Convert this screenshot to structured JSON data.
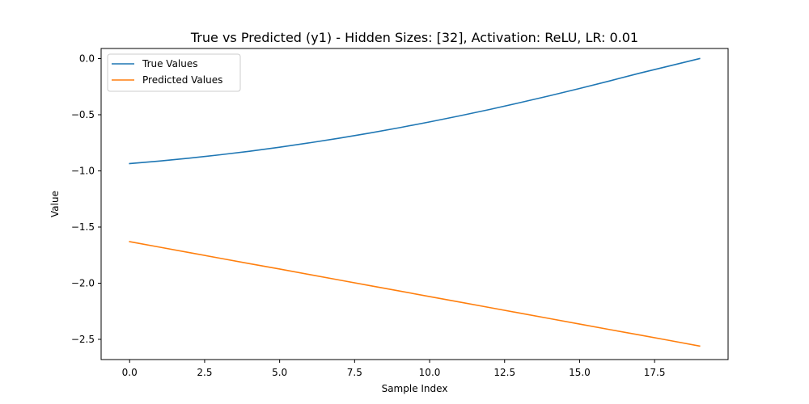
{
  "chart_data": {
    "type": "line",
    "title": "True vs Predicted (y1) - Hidden Sizes: [32], Activation: ReLU, LR: 0.01",
    "xlabel": "Sample Index",
    "ylabel": "Value",
    "xlim": [
      -0.95,
      19.95
    ],
    "ylim": [
      -2.68,
      0.09
    ],
    "xticks": [
      0.0,
      2.5,
      5.0,
      7.5,
      10.0,
      12.5,
      15.0,
      17.5
    ],
    "xtick_labels": [
      "0.0",
      "2.5",
      "5.0",
      "7.5",
      "10.0",
      "12.5",
      "15.0",
      "17.5"
    ],
    "yticks": [
      0.0,
      -0.5,
      -1.0,
      -1.5,
      -2.0,
      -2.5
    ],
    "ytick_labels": [
      "0.0",
      "−0.5",
      "−1.0",
      "−1.5",
      "−2.0",
      "−2.5"
    ],
    "grid": false,
    "legend_position": "top-left",
    "x": [
      0,
      1,
      2,
      3,
      4,
      5,
      6,
      7,
      8,
      9,
      10,
      11,
      12,
      13,
      14,
      15,
      16,
      17,
      18,
      19
    ],
    "series": [
      {
        "name": "True Values",
        "color": "#1f77b4",
        "values": [
          -0.935,
          -0.912,
          -0.886,
          -0.857,
          -0.825,
          -0.789,
          -0.75,
          -0.708,
          -0.663,
          -0.615,
          -0.564,
          -0.51,
          -0.453,
          -0.393,
          -0.331,
          -0.266,
          -0.199,
          -0.13,
          -0.065,
          0.0
        ]
      },
      {
        "name": "Predicted Values",
        "color": "#ff7f0e",
        "values": [
          -1.63,
          -1.679,
          -1.728,
          -1.777,
          -1.826,
          -1.874,
          -1.923,
          -1.972,
          -2.021,
          -2.07,
          -2.119,
          -2.168,
          -2.217,
          -2.266,
          -2.315,
          -2.364,
          -2.413,
          -2.461,
          -2.51,
          -2.56
        ]
      }
    ]
  }
}
